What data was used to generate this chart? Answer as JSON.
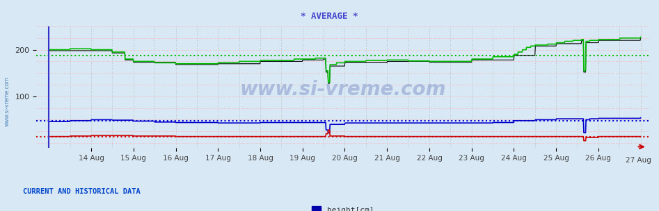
{
  "title": "* AVERAGE *",
  "title_color": "#4444cc",
  "bg_color": "#d8e8f4",
  "plot_bg_color": "#d8e8f4",
  "watermark": "www.si-vreme.com",
  "ylim": [
    -10,
    250
  ],
  "yticks": [
    100,
    200
  ],
  "date_labels": [
    "14 Aug",
    "15 Aug",
    "16 Aug",
    "17 Aug",
    "18 Aug",
    "19 Aug",
    "20 Aug",
    "21 Aug",
    "22 Aug",
    "23 Aug",
    "24 Aug",
    "25 Aug",
    "26 Aug",
    "27 Aug"
  ],
  "green_avg": 187,
  "blue_avg": 47,
  "red_avg": 14,
  "black_avg": 198,
  "green_color": "#00bb00",
  "blue_color": "#0000cc",
  "red_color": "#cc0000",
  "black_color": "#000000",
  "bottom_label": "CURRENT AND HISTORICAL DATA",
  "legend_label": "height[cm]",
  "legend_color": "#0000aa",
  "vgrid_color": "#bbbbbb",
  "hgrid_color": "#ffaaaa"
}
